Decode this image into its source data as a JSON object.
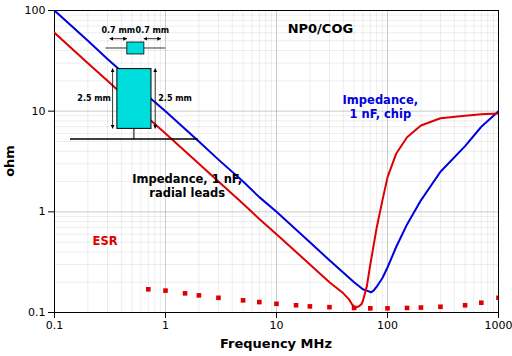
{
  "chart_data": {
    "type": "line",
    "title": "NP0/COG",
    "xlabel": "Frequency MHz",
    "ylabel": "ohm",
    "log": true,
    "grid": true,
    "xlim": [
      0.1,
      1000
    ],
    "ylim": [
      0.1,
      100
    ],
    "xticks": [
      0.1,
      1,
      10,
      100,
      1000
    ],
    "yticks": [
      0.1,
      1,
      10,
      100
    ],
    "series": [
      {
        "color": "#0000dd",
        "line_style": "solid",
        "x": [
          0.1,
          0.2,
          0.3,
          0.5,
          0.7,
          1.0,
          2.0,
          3.0,
          5.0,
          7.0,
          10.0,
          20.0,
          30.0,
          50.0,
          60.0,
          65.0,
          68.0,
          70.0,
          71.0,
          72.0,
          73.0,
          75.0,
          78.0,
          80.0,
          90.0,
          100.0,
          120.0,
          150.0,
          200.0,
          300.0,
          500.0,
          700.0,
          1000.0
        ],
        "values": [
          100,
          50,
          33,
          20,
          14,
          10,
          5.0,
          3.3,
          2.0,
          1.4,
          1.0,
          0.5,
          0.33,
          0.2,
          0.17,
          0.165,
          0.162,
          0.16,
          0.159,
          0.16,
          0.162,
          0.165,
          0.175,
          0.18,
          0.22,
          0.28,
          0.45,
          0.75,
          1.3,
          2.5,
          4.5,
          7.0,
          10.0
        ]
      },
      {
        "color": "#dd0000",
        "line_style": "solid",
        "x": [
          0.1,
          0.2,
          0.3,
          0.5,
          0.7,
          1.0,
          2.0,
          3.0,
          5.0,
          7.0,
          10.0,
          20.0,
          30.0,
          40.0,
          45.0,
          48.0,
          50.0,
          51.0,
          52.0,
          53.0,
          55.0,
          58.0,
          60.0,
          65.0,
          70.0,
          80.0,
          90.0,
          100.0,
          120.0,
          150.0,
          200.0,
          300.0,
          500.0,
          700.0,
          1000.0
        ],
        "values": [
          60,
          30,
          20,
          12,
          8.5,
          6.0,
          3.0,
          2.0,
          1.2,
          0.85,
          0.6,
          0.3,
          0.2,
          0.155,
          0.135,
          0.12,
          0.115,
          0.112,
          0.112,
          0.113,
          0.115,
          0.12,
          0.13,
          0.18,
          0.3,
          0.7,
          1.3,
          2.2,
          3.8,
          5.5,
          7.2,
          8.5,
          9.0,
          9.3,
          9.5
        ]
      },
      {
        "color": "#dd0000",
        "line_style": "none",
        "marker": "square",
        "x": [
          0.7,
          1.0,
          1.5,
          2.0,
          3.0,
          5.0,
          7.0,
          10.0,
          15.0,
          20.0,
          30.0,
          50.0,
          70.0,
          100.0,
          150.0,
          200.0,
          300.0,
          500.0,
          700.0,
          1000.0
        ],
        "values": [
          0.17,
          0.165,
          0.155,
          0.148,
          0.14,
          0.132,
          0.127,
          0.122,
          0.118,
          0.115,
          0.113,
          0.111,
          0.11,
          0.11,
          0.111,
          0.112,
          0.114,
          0.118,
          0.125,
          0.14
        ]
      }
    ],
    "annotations": [
      {
        "text": "Impedance,\n1 nF, chip",
        "color": "#0000dd"
      },
      {
        "text": "Impedance, 1 nF,\nradial leads",
        "color": "black"
      },
      {
        "text": "ESR",
        "color": "#dd0000"
      }
    ],
    "diagram": {
      "color": "#00dddd",
      "labels": [
        "0.7 mm",
        "0.7 mm",
        "2.5 mm",
        "2.5 mm"
      ]
    }
  }
}
